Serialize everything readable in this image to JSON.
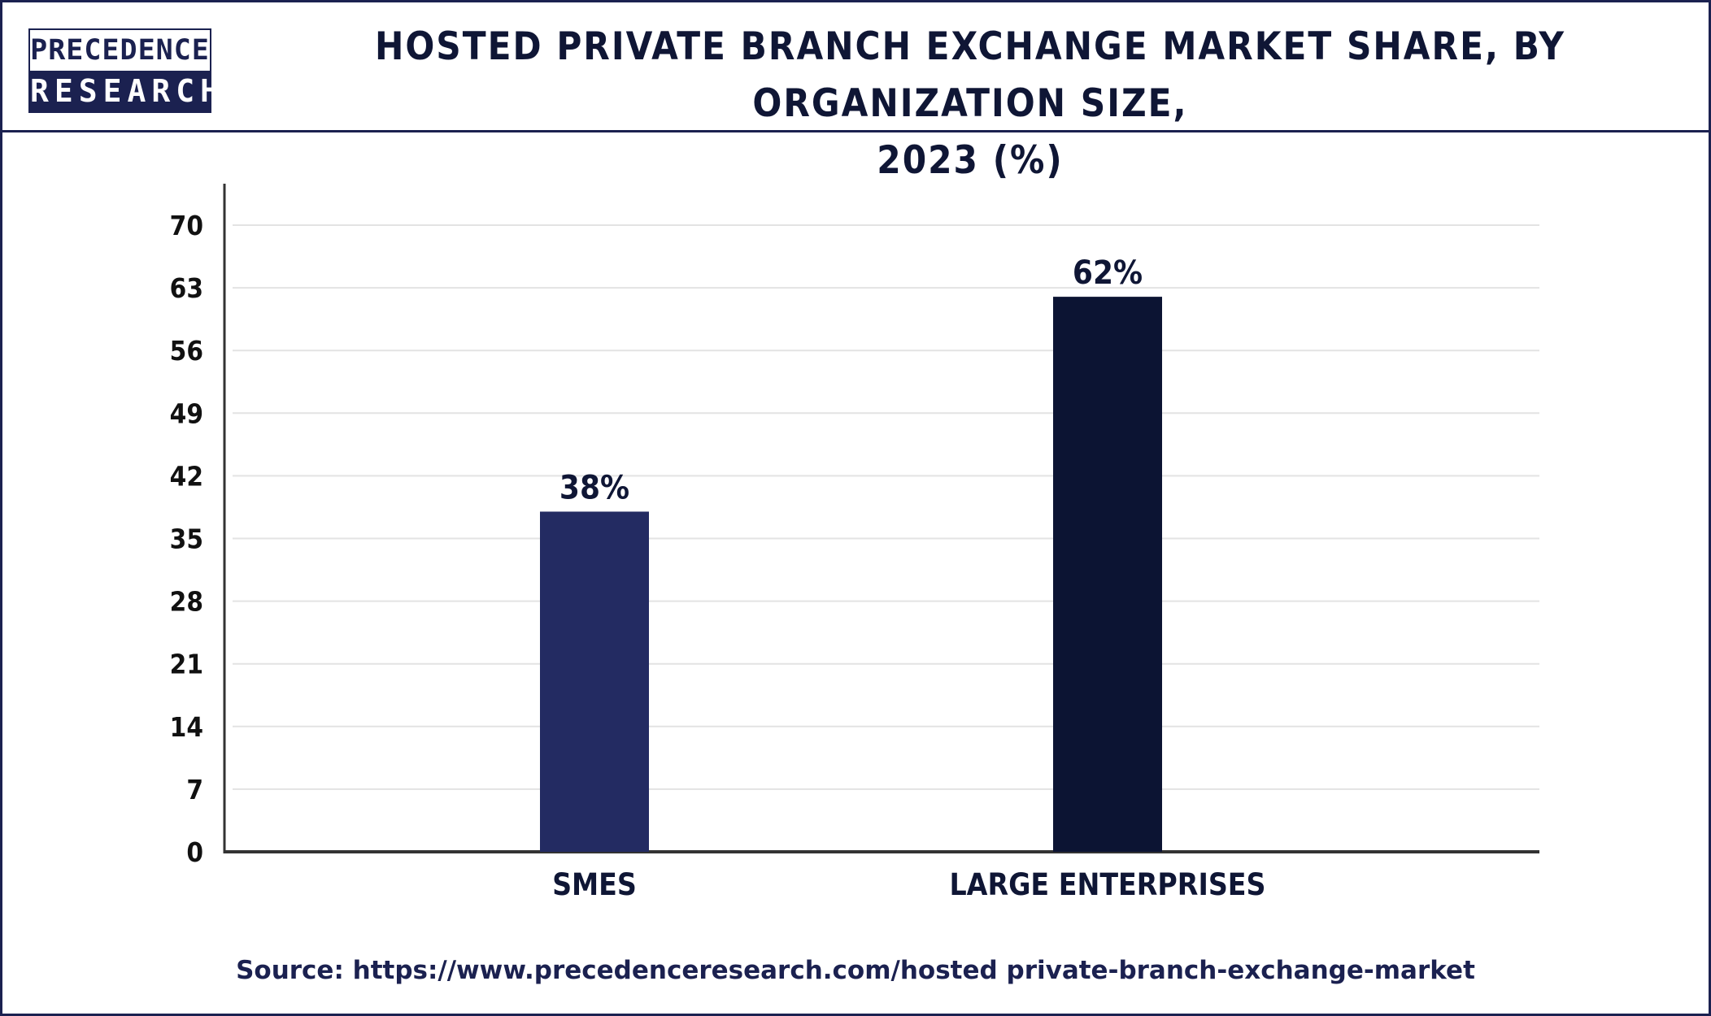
{
  "header": {
    "logo_top": "PRECEDENCE",
    "logo_bottom": "RESEARCH",
    "title_line1": "HOSTED PRIVATE BRANCH EXCHANGE MARKET SHARE, BY ORGANIZATION SIZE,",
    "title_line2": "2023 (%)"
  },
  "footer": {
    "source": "Source: https://www.precedenceresearch.com/hosted private-branch-exchange-market"
  },
  "colors": {
    "brand": "#1b2150",
    "bar_smes": "#232b62",
    "bar_large": "#0c1433",
    "grid": "#e3e3e3",
    "axis": "#333333"
  },
  "chart_data": {
    "type": "bar",
    "title": "HOSTED PRIVATE BRANCH EXCHANGE MARKET SHARE, BY ORGANIZATION SIZE, 2023 (%)",
    "categories": [
      "SMES",
      "LARGE ENTERPRISES"
    ],
    "values": [
      38,
      62
    ],
    "data_labels": [
      "38%",
      "62%"
    ],
    "bar_colors": [
      "#232b62",
      "#0c1433"
    ],
    "ylim": [
      0,
      70
    ],
    "yticks": [
      0,
      7,
      14,
      21,
      28,
      35,
      42,
      49,
      56,
      63,
      70
    ],
    "grid": true,
    "legend": "none",
    "xlabel": "",
    "ylabel": ""
  }
}
